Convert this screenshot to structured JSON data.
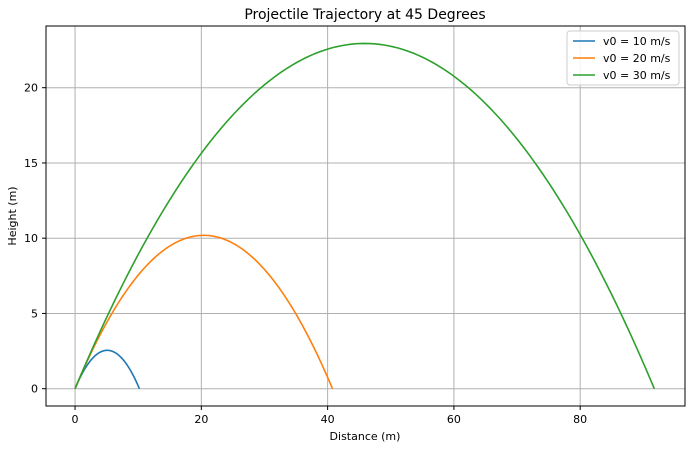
{
  "chart_data": {
    "type": "line",
    "title": "Projectile Trajectory at 45 Degrees",
    "xlabel": "Distance (m)",
    "ylabel": "Height (m)",
    "xlim": [
      -4.6,
      96.6
    ],
    "ylim": [
      -1.15,
      24.1
    ],
    "xticks": [
      0,
      20,
      40,
      60,
      80
    ],
    "yticks": [
      0,
      5,
      10,
      15,
      20
    ],
    "grid": true,
    "legend_position": "top-right",
    "series": [
      {
        "name": "v0 = 10 m/s",
        "color": "#1f77b4",
        "v0": 10,
        "range_x": 10.19,
        "max_height": 2.55
      },
      {
        "name": "v0 = 20 m/s",
        "color": "#ff7f0e",
        "v0": 20,
        "range_x": 40.77,
        "max_height": 10.19
      },
      {
        "name": "v0 = 30 m/s",
        "color": "#2ca02c",
        "v0": 30,
        "range_x": 91.74,
        "max_height": 22.94
      }
    ]
  }
}
